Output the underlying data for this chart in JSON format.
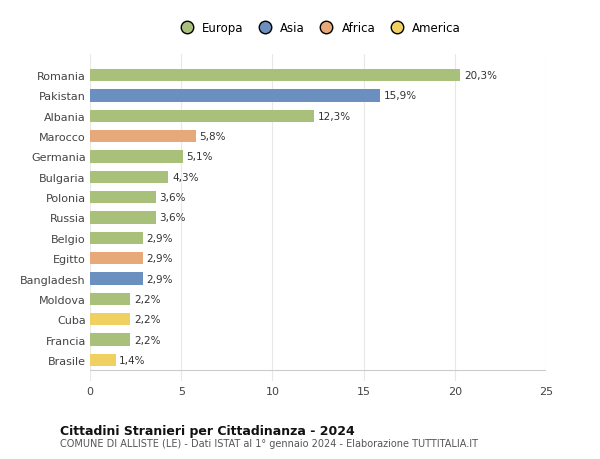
{
  "categories": [
    "Romania",
    "Pakistan",
    "Albania",
    "Marocco",
    "Germania",
    "Bulgaria",
    "Polonia",
    "Russia",
    "Belgio",
    "Egitto",
    "Bangladesh",
    "Moldova",
    "Cuba",
    "Francia",
    "Brasile"
  ],
  "values": [
    20.3,
    15.9,
    12.3,
    5.8,
    5.1,
    4.3,
    3.6,
    3.6,
    2.9,
    2.9,
    2.9,
    2.2,
    2.2,
    2.2,
    1.4
  ],
  "colors": [
    "#a8c07a",
    "#6b8fbf",
    "#a8c07a",
    "#e8a97a",
    "#a8c07a",
    "#a8c07a",
    "#a8c07a",
    "#a8c07a",
    "#a8c07a",
    "#e8a97a",
    "#6b8fbf",
    "#a8c07a",
    "#f0d060",
    "#a8c07a",
    "#f0d060"
  ],
  "labels": [
    "20,3%",
    "15,9%",
    "12,3%",
    "5,8%",
    "5,1%",
    "4,3%",
    "3,6%",
    "3,6%",
    "2,9%",
    "2,9%",
    "2,9%",
    "2,2%",
    "2,2%",
    "2,2%",
    "1,4%"
  ],
  "legend": [
    {
      "label": "Europa",
      "color": "#a8c07a"
    },
    {
      "label": "Asia",
      "color": "#6b8fbf"
    },
    {
      "label": "Africa",
      "color": "#e8a97a"
    },
    {
      "label": "America",
      "color": "#f0d060"
    }
  ],
  "xlim": [
    0,
    25
  ],
  "xticks": [
    0,
    5,
    10,
    15,
    20,
    25
  ],
  "title": "Cittadini Stranieri per Cittadinanza - 2024",
  "subtitle": "COMUNE DI ALLISTE (LE) - Dati ISTAT al 1° gennaio 2024 - Elaborazione TUTTITALIA.IT",
  "bg_color": "#ffffff",
  "grid_color": "#e8e8e8",
  "bar_height": 0.6
}
